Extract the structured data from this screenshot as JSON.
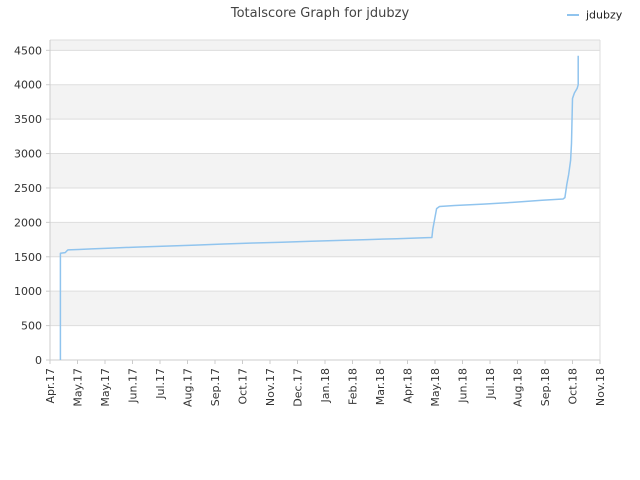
{
  "chart_data": {
    "type": "line",
    "title": "Totalscore Graph for jdubzy",
    "xlabel": "",
    "ylabel": "",
    "grid": true,
    "legend_position": "top-right",
    "x_tick_labels": [
      "Apr.17",
      "May.17",
      "May.17",
      "Jun.17",
      "Jul.17",
      "Aug.17",
      "Sep.17",
      "Oct.17",
      "Nov.17",
      "Dec.17",
      "Jan.18",
      "Feb.18",
      "Mar.18",
      "Apr.18",
      "May.18",
      "Jun.18",
      "Jul.18",
      "Aug.18",
      "Sep.18",
      "Oct.18",
      "Nov.18"
    ],
    "y_ticks": [
      0,
      500,
      1000,
      1500,
      2000,
      2500,
      3000,
      3500,
      4000,
      4500
    ],
    "ylim": [
      0,
      4650
    ],
    "xlim": [
      "2017-04-01",
      "2018-11-01"
    ],
    "series": [
      {
        "name": "jdubzy",
        "color": "#90c4ee",
        "points": [
          [
            "2017-04-12",
            0
          ],
          [
            "2017-04-12",
            1550
          ],
          [
            "2017-04-17",
            1560
          ],
          [
            "2017-04-19",
            1590
          ],
          [
            "2017-04-20",
            1600
          ],
          [
            "2017-05-01",
            1605
          ],
          [
            "2017-05-15",
            1615
          ],
          [
            "2017-06-01",
            1625
          ],
          [
            "2017-07-01",
            1640
          ],
          [
            "2017-08-01",
            1655
          ],
          [
            "2017-09-01",
            1670
          ],
          [
            "2017-10-01",
            1685
          ],
          [
            "2017-11-01",
            1700
          ],
          [
            "2017-12-01",
            1712
          ],
          [
            "2018-01-01",
            1725
          ],
          [
            "2018-02-01",
            1738
          ],
          [
            "2018-03-01",
            1750
          ],
          [
            "2018-04-01",
            1762
          ],
          [
            "2018-04-30",
            1775
          ],
          [
            "2018-05-08",
            1780
          ],
          [
            "2018-05-09",
            1900
          ],
          [
            "2018-05-11",
            2050
          ],
          [
            "2018-05-13",
            2200
          ],
          [
            "2018-05-16",
            2230
          ],
          [
            "2018-06-01",
            2245
          ],
          [
            "2018-07-01",
            2265
          ],
          [
            "2018-08-01",
            2290
          ],
          [
            "2018-09-01",
            2320
          ],
          [
            "2018-09-23",
            2340
          ],
          [
            "2018-09-25",
            2360
          ],
          [
            "2018-09-27",
            2550
          ],
          [
            "2018-09-29",
            2700
          ],
          [
            "2018-10-01",
            2900
          ],
          [
            "2018-10-02",
            3150
          ],
          [
            "2018-10-03",
            3800
          ],
          [
            "2018-10-05",
            3880
          ],
          [
            "2018-10-08",
            3950
          ],
          [
            "2018-10-09",
            4000
          ],
          [
            "2018-10-09",
            4420
          ]
        ]
      }
    ]
  }
}
